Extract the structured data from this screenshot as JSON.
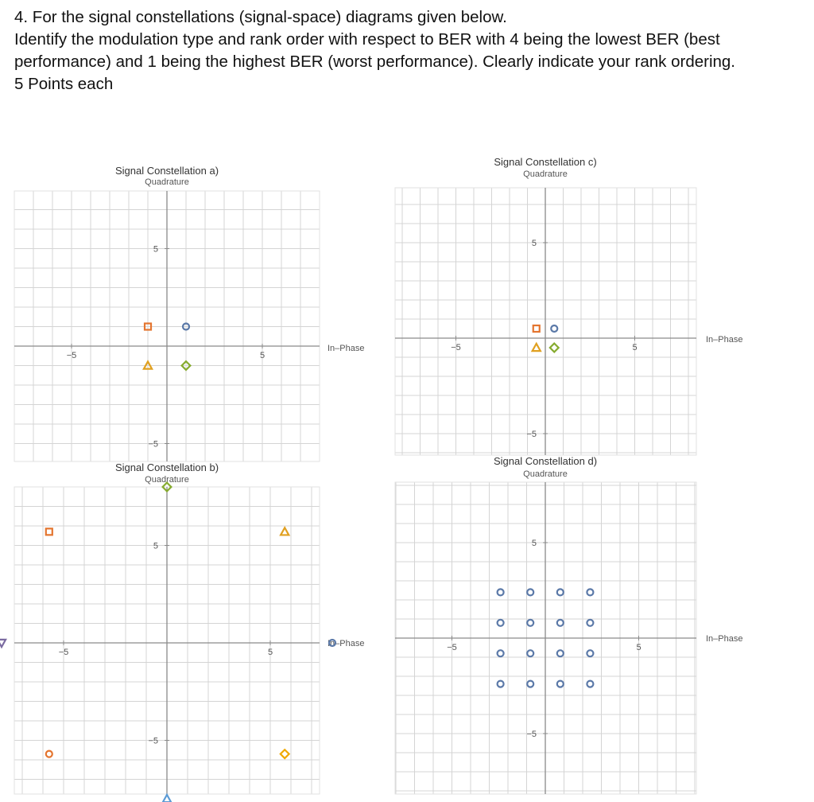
{
  "question": {
    "line1": "4. For the signal constellations  (signal-space) diagrams given below.",
    "line2": "Identify the modulation type and rank order with respect to BER with 4 being the lowest BER (best",
    "line3": "performance)  and 1 being the highest BER (worst performance).  Clearly indicate your rank ordering.",
    "line4": "5 Points each"
  },
  "colors": {
    "blue": "#5b79a8",
    "orange": "#e4752f",
    "gold": "#e0a020",
    "green": "#86ab2f",
    "grid": "#d4d4d4",
    "axis": "#8a8a8a",
    "text": "#555555"
  },
  "chart_data": [
    {
      "type": "scatter",
      "title": "Signal Constellation a)",
      "ylabel": "Quadrature",
      "xlabel": "In–Phase",
      "xlim": [
        -8,
        8
      ],
      "ylim": [
        -6.5,
        8.5
      ],
      "ticks": [
        -5,
        5
      ],
      "series": [
        {
          "marker": "circle",
          "color": "#5b79a8",
          "points": [
            [
              1,
              1
            ]
          ]
        },
        {
          "marker": "square",
          "color": "#e4752f",
          "points": [
            [
              -1,
              1
            ]
          ]
        },
        {
          "marker": "triangle",
          "color": "#e0a020",
          "points": [
            [
              -1,
              -1
            ]
          ]
        },
        {
          "marker": "diamond",
          "color": "#86ab2f",
          "points": [
            [
              1,
              -1
            ]
          ]
        }
      ]
    },
    {
      "type": "scatter",
      "title": "Signal Constellation b)",
      "ylabel": "Quadrature",
      "xlabel": "In–Phase",
      "xlim": [
        -8,
        8
      ],
      "ylim": [
        -8,
        8
      ],
      "ticks": [
        -5,
        5
      ],
      "series": [
        {
          "marker": "circle",
          "color": "#5b79a8",
          "points": [
            [
              8,
              0
            ]
          ]
        },
        {
          "marker": "square",
          "color": "#e4752f",
          "points": [
            [
              -5.7,
              5.7
            ]
          ]
        },
        {
          "marker": "triangle",
          "color": "#e0a020",
          "points": [
            [
              5.7,
              5.7
            ]
          ]
        },
        {
          "marker": "diamond",
          "color": "#86ab2f",
          "points": [
            [
              0,
              8
            ]
          ]
        },
        {
          "marker": "triangle-down",
          "color": "#7a6aa0",
          "points": [
            [
              -8,
              0
            ]
          ]
        },
        {
          "marker": "circle",
          "color": "#e4752f",
          "points": [
            [
              -5.7,
              -5.7
            ]
          ]
        },
        {
          "marker": "triangle",
          "color": "#5b9bd5",
          "points": [
            [
              0,
              -8
            ]
          ]
        },
        {
          "marker": "diamond",
          "color": "#f0a800",
          "points": [
            [
              5.7,
              -5.7
            ]
          ]
        }
      ]
    },
    {
      "type": "scatter",
      "title": "Signal Constellation c)",
      "ylabel": "Quadrature",
      "xlabel": "In–Phase",
      "xlim": [
        -8,
        8
      ],
      "ylim": [
        -7,
        8
      ],
      "ticks": [
        -5,
        5
      ],
      "series": [
        {
          "marker": "circle",
          "color": "#5b79a8",
          "points": [
            [
              0.5,
              0.5
            ]
          ]
        },
        {
          "marker": "square",
          "color": "#e4752f",
          "points": [
            [
              -0.5,
              0.5
            ]
          ]
        },
        {
          "marker": "triangle",
          "color": "#e0a020",
          "points": [
            [
              -0.5,
              -0.5
            ]
          ]
        },
        {
          "marker": "diamond",
          "color": "#86ab2f",
          "points": [
            [
              0.5,
              -0.5
            ]
          ]
        }
      ]
    },
    {
      "type": "scatter",
      "title": "Signal Constellation d)",
      "ylabel": "Quadrature",
      "xlabel": "In–Phase",
      "xlim": [
        -8,
        8
      ],
      "ylim": [
        -8,
        8
      ],
      "ticks": [
        -5,
        5
      ],
      "series": [
        {
          "marker": "circle",
          "color": "#5b79a8",
          "points": [
            [
              -2.4,
              2.4
            ],
            [
              -0.8,
              2.4
            ],
            [
              0.8,
              2.4
            ],
            [
              2.4,
              2.4
            ],
            [
              -2.4,
              0.8
            ],
            [
              -0.8,
              0.8
            ],
            [
              0.8,
              0.8
            ],
            [
              2.4,
              0.8
            ],
            [
              -2.4,
              -0.8
            ],
            [
              -0.8,
              -0.8
            ],
            [
              0.8,
              -0.8
            ],
            [
              2.4,
              -0.8
            ],
            [
              -2.4,
              -2.4
            ],
            [
              -0.8,
              -2.4
            ],
            [
              0.8,
              -2.4
            ],
            [
              2.4,
              -2.4
            ]
          ]
        }
      ]
    }
  ]
}
